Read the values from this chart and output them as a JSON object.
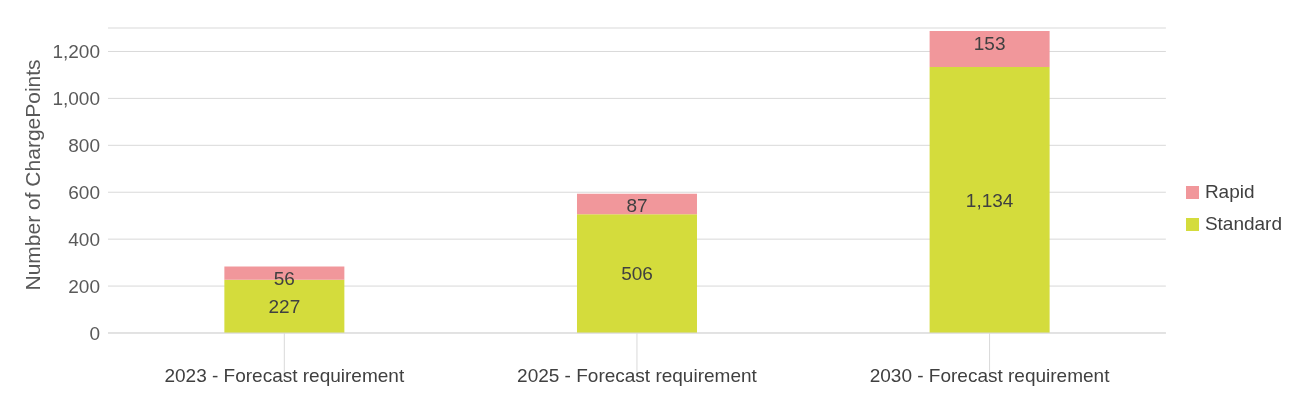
{
  "chart_data": {
    "type": "bar",
    "ylabel": "Number of ChargePoints",
    "categories": [
      "2023 - Forecast requirement",
      "2025 - Forecast requirement",
      "2030 - Forecast requirement"
    ],
    "series": [
      {
        "name": "Standard",
        "color": "#d4dc3c",
        "values": [
          227,
          506,
          1134
        ],
        "value_labels": [
          "227",
          "506",
          "1,134"
        ]
      },
      {
        "name": "Rapid",
        "color": "#f1979b",
        "values": [
          56,
          87,
          153
        ],
        "value_labels": [
          "56",
          "87",
          "153"
        ]
      }
    ],
    "stacked": true,
    "ylim": [
      0,
      1300
    ],
    "yticks": [
      {
        "value": 0,
        "label": "0"
      },
      {
        "value": 200,
        "label": "200"
      },
      {
        "value": 400,
        "label": "400"
      },
      {
        "value": 600,
        "label": "600"
      },
      {
        "value": 800,
        "label": "800"
      },
      {
        "value": 1000,
        "label": "1,000"
      },
      {
        "value": 1200,
        "label": "1,200"
      }
    ],
    "grid": "y",
    "legend": "right"
  }
}
